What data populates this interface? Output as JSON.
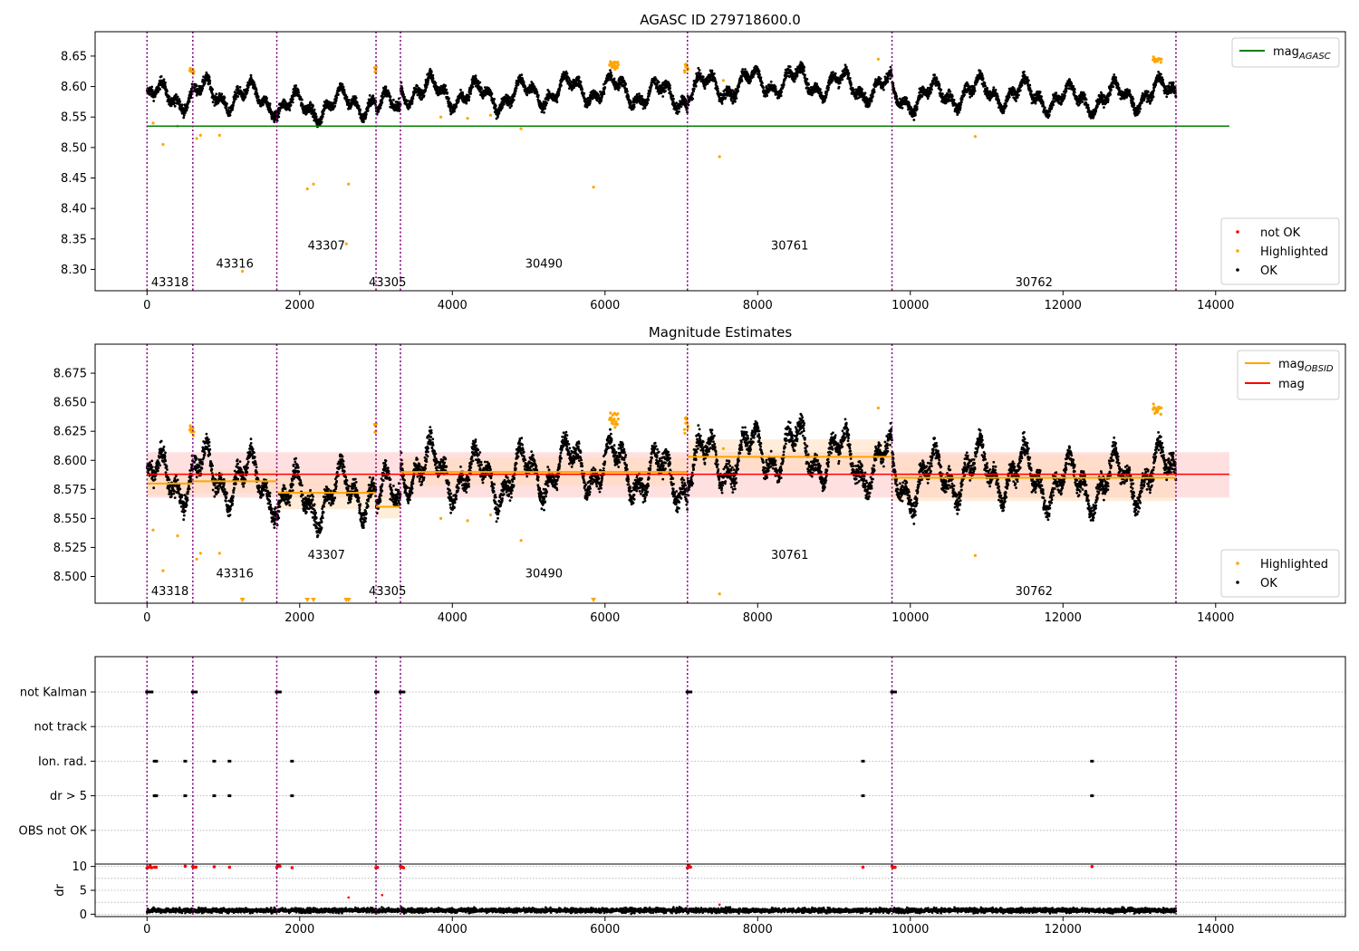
{
  "colors": {
    "ok": "#000000",
    "highlighted": "#ffa500",
    "not_ok": "#ff0000",
    "mag_agasc_line": "#008000",
    "mag_line": "#ff0000",
    "mag_obsid_line": "#ffa500",
    "obs_boundary": "#800080",
    "mag_band": "#ffcccc",
    "obs_band": "#ffd9b3"
  },
  "chart_data": [
    {
      "type": "scatter",
      "title": "AGASC ID 279718600.0",
      "x_range": [
        -680,
        15700
      ],
      "ylim": [
        8.265,
        8.69
      ],
      "x_ticks": [
        0,
        2000,
        4000,
        6000,
        8000,
        10000,
        12000,
        14000
      ],
      "y_ticks": [
        8.3,
        8.35,
        8.4,
        8.45,
        8.5,
        8.55,
        8.6,
        8.65
      ],
      "y_tick_labels": [
        "8.30",
        "8.35",
        "8.40",
        "8.45",
        "8.50",
        "8.55",
        "8.60",
        "8.65"
      ],
      "mag_agasc": 8.535,
      "legend_lines": [
        {
          "label": "mag",
          "subscript": "AGASC",
          "color": "#008000"
        }
      ],
      "legend_points": [
        {
          "label": "not OK",
          "color": "#ff0000"
        },
        {
          "label": "Highlighted",
          "color": "#ffa500"
        },
        {
          "label": "OK",
          "color": "#000000"
        }
      ],
      "legend_placement": "lines top-right, points bottom-right",
      "obs_labels": [
        {
          "obsid": "43318",
          "x": 300,
          "y": 8.28
        },
        {
          "obsid": "43316",
          "x": 1150,
          "y": 8.31
        },
        {
          "obsid": "43307",
          "x": 2350,
          "y": 8.34
        },
        {
          "obsid": "43305",
          "x": 3150,
          "y": 8.28
        },
        {
          "obsid": "30490",
          "x": 5200,
          "y": 8.31
        },
        {
          "obsid": "30761",
          "x": 8420,
          "y": 8.34
        },
        {
          "obsid": "30762",
          "x": 11620,
          "y": 8.28
        }
      ]
    },
    {
      "type": "scatter",
      "title": "Magnitude Estimates",
      "x_range": [
        -680,
        15700
      ],
      "ylim": [
        8.477,
        8.7
      ],
      "x_ticks": [
        0,
        2000,
        4000,
        6000,
        8000,
        10000,
        12000,
        14000
      ],
      "y_ticks": [
        8.5,
        8.525,
        8.55,
        8.575,
        8.6,
        8.625,
        8.65,
        8.675
      ],
      "y_tick_labels": [
        "8.500",
        "8.525",
        "8.550",
        "8.575",
        "8.600",
        "8.625",
        "8.650",
        "8.675"
      ],
      "mag": 8.588,
      "mag_band": [
        8.568,
        8.607
      ],
      "obs_mags": [
        {
          "x0": 0,
          "x1": 600,
          "mag": 8.58,
          "band": [
            8.57,
            8.59
          ]
        },
        {
          "x0": 600,
          "x1": 1700,
          "mag": 8.582,
          "band": [
            8.572,
            8.592
          ]
        },
        {
          "x0": 1700,
          "x1": 3000,
          "mag": 8.572,
          "band": [
            8.558,
            8.586
          ]
        },
        {
          "x0": 3000,
          "x1": 3320,
          "mag": 8.56,
          "band": [
            8.55,
            8.57
          ]
        },
        {
          "x0": 3320,
          "x1": 7080,
          "mag": 8.59,
          "band": [
            8.578,
            8.602
          ]
        },
        {
          "x0": 7080,
          "x1": 9760,
          "mag": 8.603,
          "band": [
            8.59,
            8.618
          ]
        },
        {
          "x0": 9760,
          "x1": 13480,
          "mag": 8.585,
          "band": [
            8.565,
            8.605
          ]
        }
      ],
      "legend_lines": [
        {
          "label": "mag",
          "subscript": "OBSID",
          "color": "#ffa500"
        },
        {
          "label": "mag",
          "subscript": "",
          "color": "#ff0000"
        }
      ],
      "legend_points": [
        {
          "label": "Highlighted",
          "color": "#ffa500"
        },
        {
          "label": "OK",
          "color": "#000000"
        }
      ],
      "legend_placement": "lines top-right, points bottom-right",
      "obs_labels": [
        {
          "obsid": "43318",
          "x": 300,
          "y": 8.488
        },
        {
          "obsid": "43316",
          "x": 1150,
          "y": 8.503
        },
        {
          "obsid": "43307",
          "x": 2350,
          "y": 8.519
        },
        {
          "obsid": "43305",
          "x": 3150,
          "y": 8.488
        },
        {
          "obsid": "30490",
          "x": 5200,
          "y": 8.503
        },
        {
          "obsid": "30761",
          "x": 8420,
          "y": 8.519
        },
        {
          "obsid": "30762",
          "x": 11620,
          "y": 8.488
        }
      ]
    },
    {
      "type": "scatter",
      "title": "",
      "x_range": [
        -680,
        15700
      ],
      "flag_rows": [
        "not Kalman",
        "not track",
        "Ion. rad.",
        "dr > 5",
        "OBS not OK"
      ],
      "dr_ticks": [
        0,
        5,
        10
      ],
      "dr_ylim": [
        -0.5,
        10.5
      ],
      "x_ticks": [
        0,
        2000,
        4000,
        6000,
        8000,
        10000,
        12000,
        14000
      ],
      "flag_points": {
        "not Kalman": [
          0,
          20,
          40,
          60,
          600,
          620,
          640,
          1700,
          1720,
          1740,
          3000,
          3020,
          3320,
          3340,
          3360,
          7080,
          7100,
          7120,
          9760,
          9780,
          9800
        ],
        "not track": [],
        "Ion. rad.": [
          100,
          120,
          500,
          880,
          1080,
          1900,
          9380,
          12380
        ],
        "dr > 5": [
          100,
          120,
          500,
          880,
          1080,
          1900,
          9380,
          12380
        ],
        "OBS not OK": []
      },
      "dr_high_points": [
        0,
        20,
        40,
        60,
        100,
        120,
        500,
        600,
        620,
        640,
        880,
        1080,
        1700,
        1720,
        1740,
        1900,
        3000,
        3020,
        3320,
        3340,
        3360,
        7080,
        7100,
        7120,
        9380,
        9760,
        9780,
        9800,
        12380
      ],
      "dr_outliers": [
        {
          "x": 2640,
          "dr": 3.5
        },
        {
          "x": 3080,
          "dr": 4.0
        },
        {
          "x": 7500,
          "dr": 2.0
        }
      ]
    }
  ],
  "obs_boundaries": [
    0,
    600,
    1700,
    3000,
    3320,
    7080,
    9760,
    13480
  ]
}
